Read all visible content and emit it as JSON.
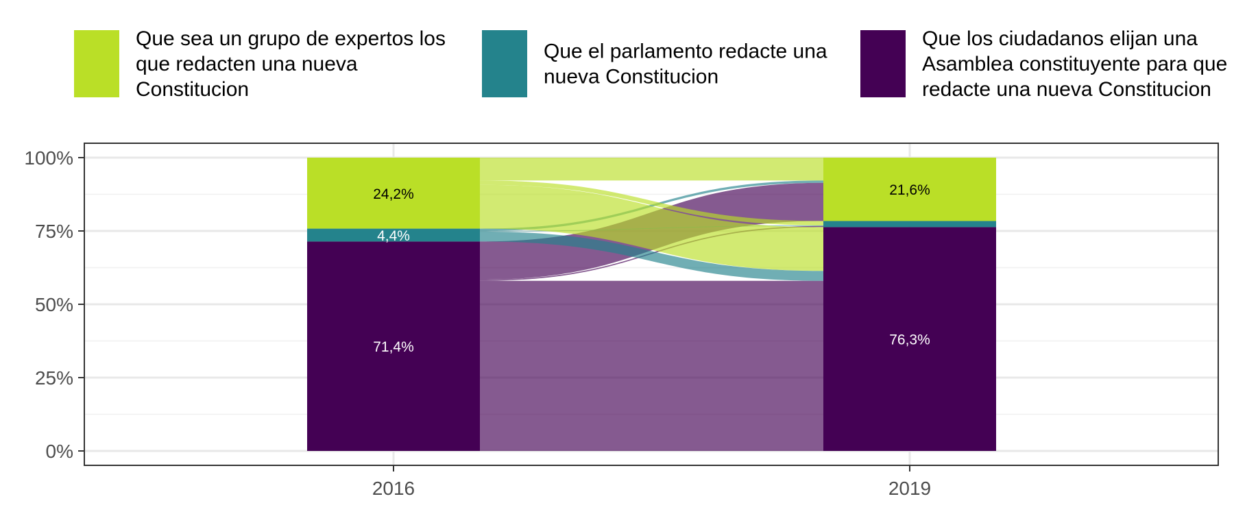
{
  "chart_data": {
    "type": "alluvial",
    "x": [
      "2016",
      "2019"
    ],
    "ylim": [
      0,
      100
    ],
    "y_ticks": [
      "0%",
      "25%",
      "50%",
      "75%",
      "100%"
    ],
    "grid": true,
    "legend_position": "top",
    "categories": [
      {
        "key": "expertos",
        "name_lines": [
          "Que sea un grupo de expertos los",
          "que redacten una nueva",
          "Constitucion"
        ],
        "color": "#BADF27"
      },
      {
        "key": "parlamento",
        "name_lines": [
          "Que el parlamento redacte una",
          "nueva Constitucion"
        ],
        "color": "#24838C"
      },
      {
        "key": "asamblea",
        "name_lines": [
          "Que los ciudadanos elijan una",
          "Asamblea constituyente para que",
          "redacte una nueva Constitucion"
        ],
        "color": "#440154"
      }
    ],
    "stacks": [
      {
        "x": "2016",
        "segments": [
          {
            "category": "asamblea",
            "value": 71.4,
            "label": "71,4%"
          },
          {
            "category": "parlamento",
            "value": 4.4,
            "label": "4,4%"
          },
          {
            "category": "expertos",
            "value": 24.2,
            "label": "24,2%"
          }
        ]
      },
      {
        "x": "2019",
        "segments": [
          {
            "category": "asamblea",
            "value": 76.3,
            "label": "76,3%"
          },
          {
            "category": "parlamento",
            "value": 2.1,
            "label": ""
          },
          {
            "category": "expertos",
            "value": 21.6,
            "label": "21,6%"
          }
        ]
      }
    ],
    "flows": [
      {
        "from": "asamblea",
        "to": "asamblea",
        "value": 58.0
      },
      {
        "from": "asamblea",
        "to": "parlamento",
        "value": 0.4
      },
      {
        "from": "asamblea",
        "to": "expertos",
        "value": 13.0
      },
      {
        "from": "parlamento",
        "to": "asamblea",
        "value": 3.4
      },
      {
        "from": "parlamento",
        "to": "parlamento",
        "value": 0.2
      },
      {
        "from": "parlamento",
        "to": "expertos",
        "value": 0.8
      },
      {
        "from": "expertos",
        "to": "asamblea",
        "value": 14.9
      },
      {
        "from": "expertos",
        "to": "parlamento",
        "value": 1.5
      },
      {
        "from": "expertos",
        "to": "expertos",
        "value": 7.8
      }
    ]
  }
}
